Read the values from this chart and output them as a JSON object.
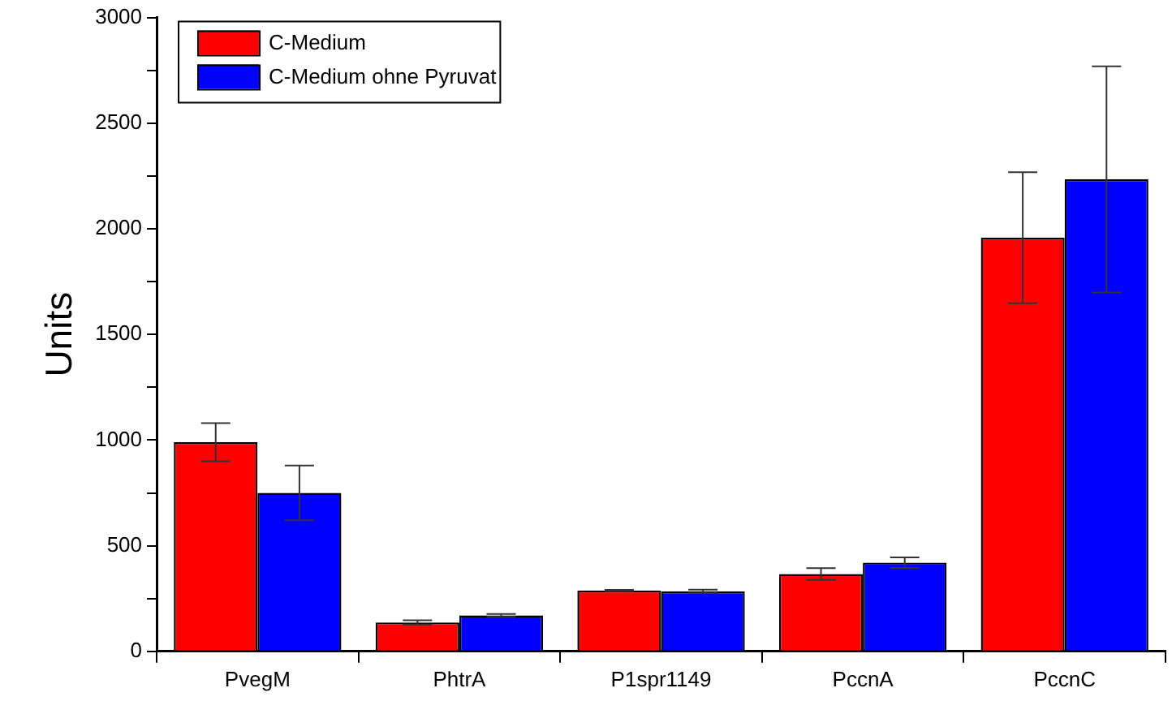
{
  "chart_data": {
    "type": "bar",
    "ylabel": "Units",
    "categories": [
      "PvegM",
      "PhtrA",
      "P1spr1149",
      "PccnA",
      "PccnC"
    ],
    "series": [
      {
        "name": "C-Medium",
        "color": "#ff0000",
        "values": [
          990,
          137,
          288,
          366,
          1958
        ],
        "errors": [
          90,
          10,
          3,
          28,
          310
        ]
      },
      {
        "name": "C-Medium ohne Pyruvat",
        "color": "#0000ff",
        "values": [
          750,
          170,
          284,
          420,
          2234
        ],
        "errors": [
          130,
          7,
          8,
          25,
          535
        ]
      }
    ],
    "ylim": [
      0,
      3000
    ],
    "yticks": [
      0,
      {
        "value": 250,
        "label": null
      },
      500,
      {
        "value": 750,
        "label": null
      },
      1000,
      {
        "value": 1250,
        "label": null
      },
      1500,
      {
        "value": 1750,
        "label": null
      },
      2000,
      {
        "value": 2250,
        "label": null
      },
      2500,
      {
        "value": 2750,
        "label": null
      },
      3000
    ],
    "grid": false,
    "legend": "top left"
  }
}
